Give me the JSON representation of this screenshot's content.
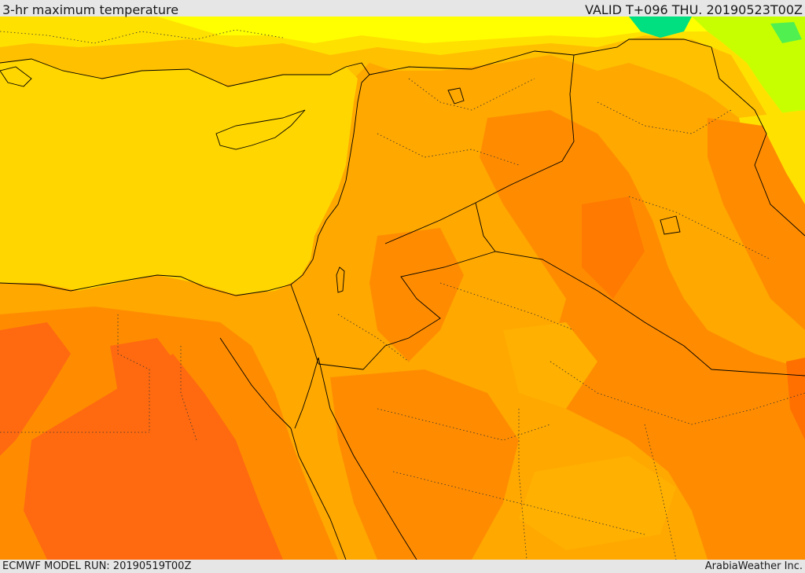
{
  "header": {
    "title": "3-hr maximum temperature",
    "valid": "VALID T+096 THU. 20190523T00Z"
  },
  "footer": {
    "model_run": "ECMWF MODEL RUN: 20190519T00Z",
    "credit": "ArabiaWeather Inc."
  },
  "colors": {
    "sea": "#ffd600",
    "yellow": "#ffff00",
    "light_orange": "#ffc000",
    "orange": "#ffa800",
    "dark_orange": "#ff8c00",
    "red_orange": "#ff6a10",
    "green": "#00e080",
    "light_green": "#c8ff00",
    "border": "#000000"
  }
}
